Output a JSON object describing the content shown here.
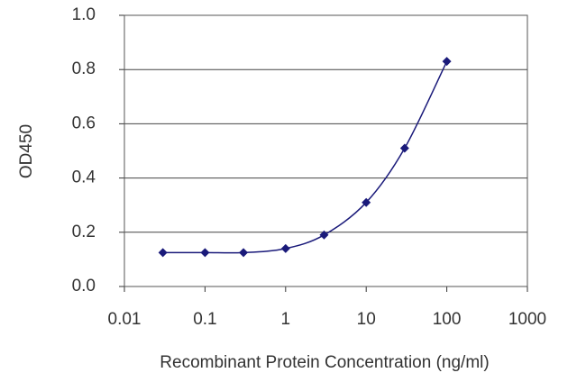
{
  "chart_data": {
    "type": "line",
    "x_label": "Recombinant Protein Concentration (ng/ml)",
    "y_label": "OD450",
    "x": [
      0.03,
      0.1,
      0.3,
      1,
      3,
      10,
      30,
      100
    ],
    "values": [
      0.125,
      0.125,
      0.125,
      0.14,
      0.19,
      0.31,
      0.51,
      0.83
    ],
    "color": "#1a1a7a",
    "xscale": "log",
    "xlim": [
      0.01,
      1000
    ],
    "xticks": [
      0.01,
      0.1,
      1,
      10,
      100,
      1000
    ],
    "ylim": [
      0,
      1
    ],
    "yticks": [
      {
        "value": 0,
        "label": "0.0"
      },
      0.2,
      0.4,
      0.6,
      0.8,
      {
        "value": 1,
        "label": "1.0"
      }
    ],
    "grid": true
  }
}
